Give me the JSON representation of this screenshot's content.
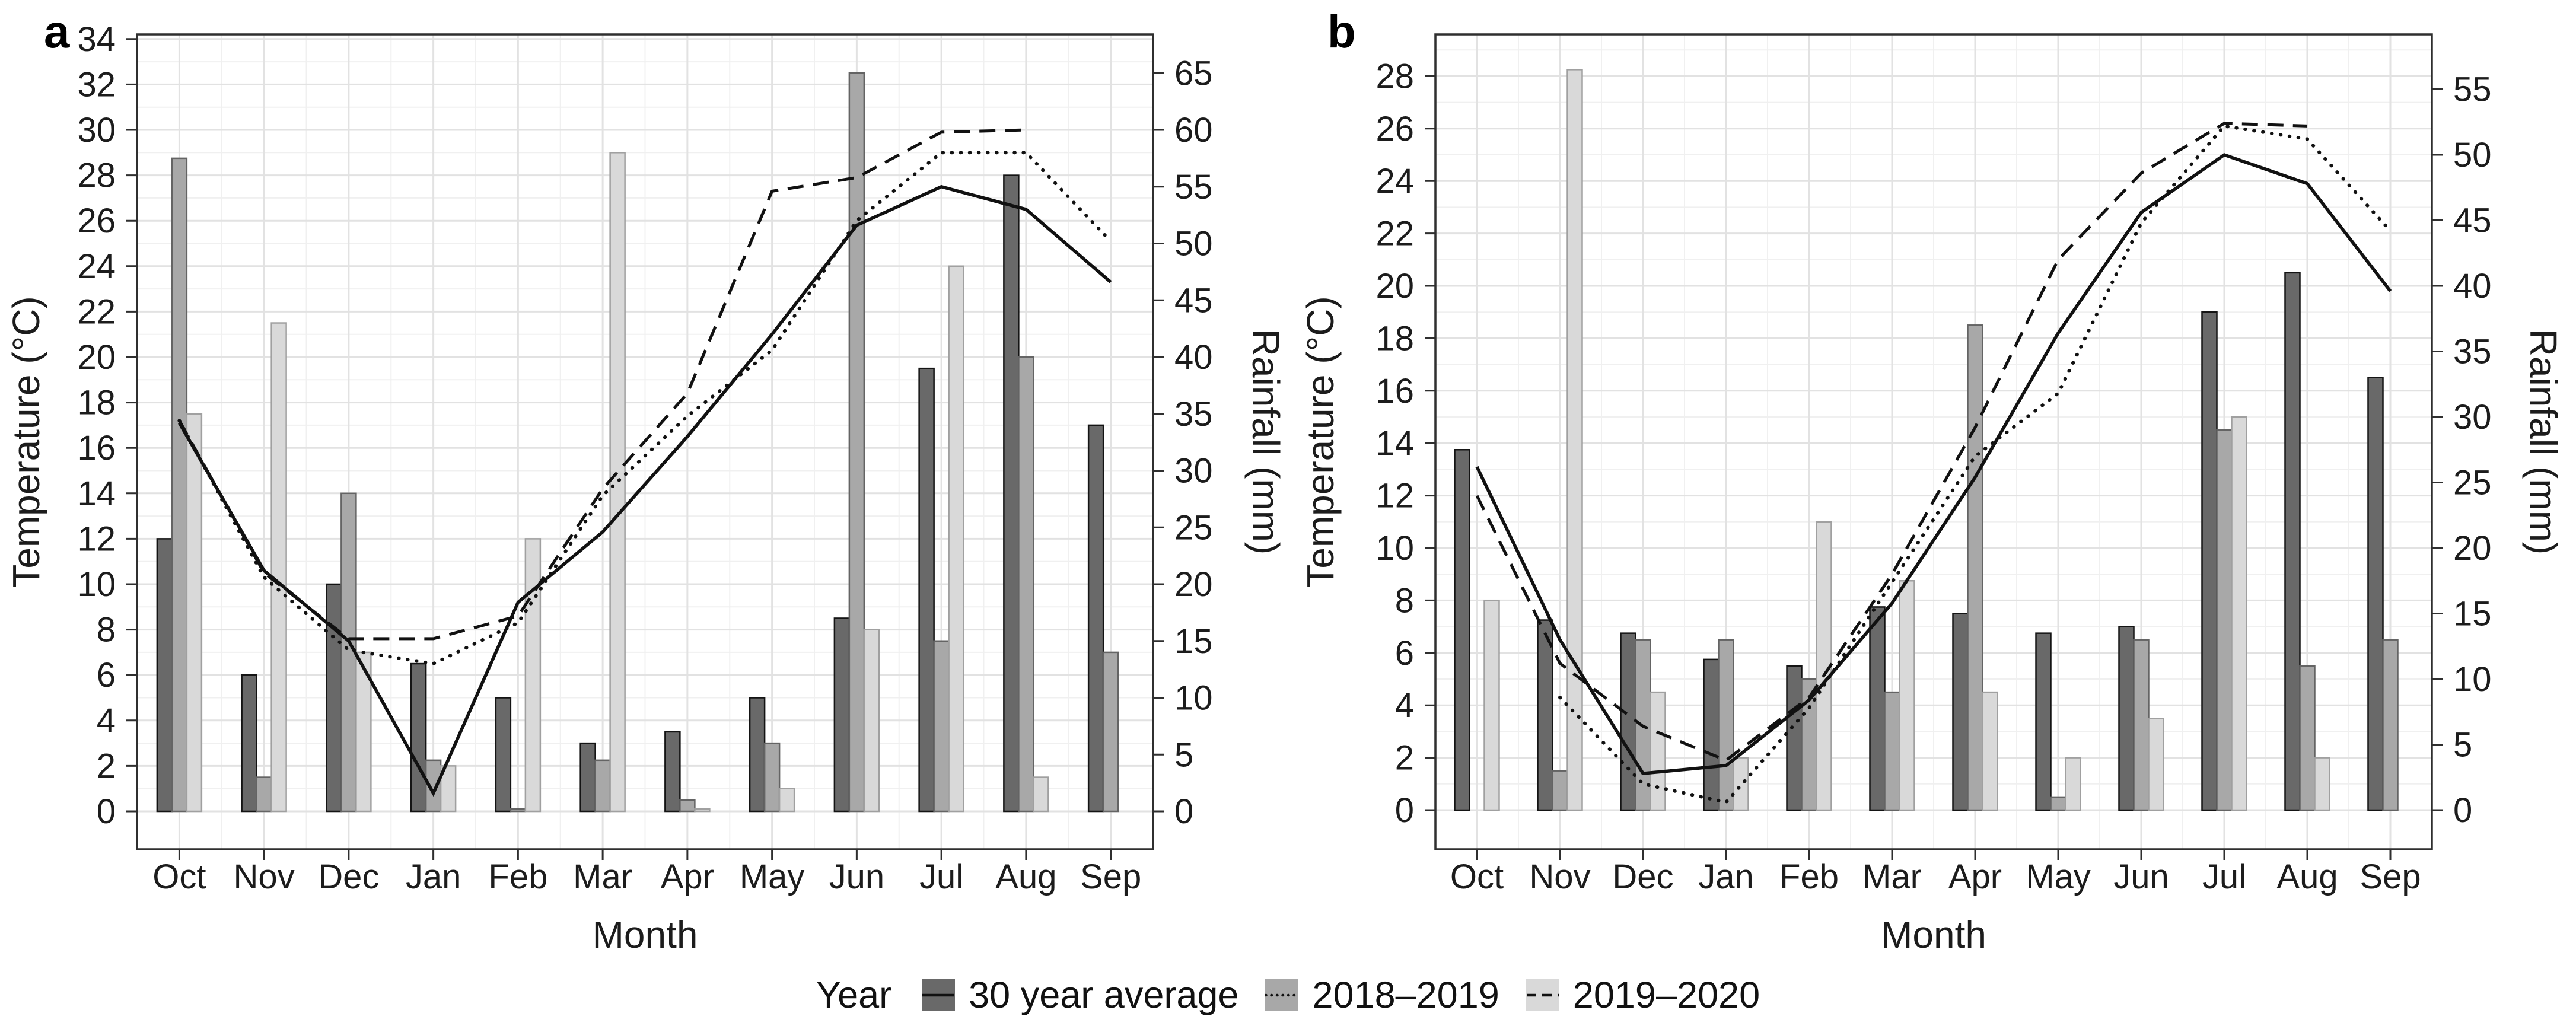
{
  "figure": {
    "legend": {
      "title": "Year",
      "items": [
        {
          "label": "30 year average",
          "fill": "#696969",
          "linetype": "solid"
        },
        {
          "label": "2018–2019",
          "fill": "#a8a8a8",
          "linetype": "dotted"
        },
        {
          "label": "2019–2020",
          "fill": "#d9d9d9",
          "linetype": "dashed"
        }
      ]
    },
    "colors": {
      "bar_dark": "#696969",
      "bar_medium": "#a8a8a8",
      "bar_light": "#d9d9d9",
      "bar_dark_stroke": "#141414",
      "bar_medium_stroke": "#646464",
      "bar_light_stroke": "#a0a0a0",
      "line": "#111111",
      "grid_major": "#e2e2e2",
      "grid_minor": "#f0f0f0",
      "panel_border": "#2f2f2f"
    }
  },
  "chart_data": [
    {
      "type": "bar",
      "panel_label": "a",
      "categories": [
        "Oct",
        "Nov",
        "Dec",
        "Jan",
        "Feb",
        "Mar",
        "Apr",
        "May",
        "Jun",
        "Jul",
        "Aug",
        "Sep"
      ],
      "xlabel": "Month",
      "left_axis": {
        "label": "Temperature (°C)",
        "min": 0,
        "max": 34,
        "tick_step": 2
      },
      "right_axis": {
        "label": "Rainfall (mm)",
        "min": 0,
        "max": 65,
        "tick_step": 5
      },
      "bar_series": [
        {
          "name": "30 year average",
          "axis": "right",
          "unit": "mm",
          "values": [
            24,
            12,
            20,
            13,
            10,
            6,
            7,
            10,
            17,
            39,
            56,
            34
          ]
        },
        {
          "name": "2018–2019",
          "axis": "right",
          "unit": "mm",
          "values": [
            57.5,
            3,
            28,
            4.5,
            0.2,
            4.5,
            1,
            6,
            65,
            15,
            40,
            14
          ]
        },
        {
          "name": "2019–2020",
          "axis": "right",
          "unit": "mm",
          "values": [
            35,
            43,
            14,
            4,
            24,
            58,
            0.2,
            2,
            16,
            48,
            3,
            0
          ]
        }
      ],
      "line_series": [
        {
          "name": "30 year average",
          "style": "solid",
          "axis": "left",
          "unit": "°C",
          "values": [
            17.1,
            10.6,
            7.5,
            0.8,
            9.2,
            12.3,
            16.5,
            21.0,
            25.8,
            27.5,
            26.5,
            23.3
          ]
        },
        {
          "name": "2018–2019",
          "style": "dotted",
          "axis": "left",
          "unit": "°C",
          "values": [
            17.2,
            10.3,
            7.1,
            6.5,
            8.3,
            13.9,
            17.4,
            20.3,
            26.0,
            29.0,
            29.0,
            25.1
          ]
        },
        {
          "name": "2019–2020",
          "style": "dashed",
          "axis": "left",
          "unit": "°C",
          "values": [
            17.2,
            10.5,
            7.6,
            7.6,
            8.6,
            14.2,
            18.4,
            27.3,
            27.9,
            29.9,
            30.0,
            null
          ]
        }
      ],
      "grid": true,
      "legend_position": "bottom"
    },
    {
      "type": "bar",
      "panel_label": "b",
      "categories": [
        "Oct",
        "Nov",
        "Dec",
        "Jan",
        "Feb",
        "Mar",
        "Apr",
        "May",
        "Jun",
        "Jul",
        "Aug",
        "Sep"
      ],
      "xlabel": "Month",
      "left_axis": {
        "label": "Temperature (°C)",
        "min": 0,
        "max": 28,
        "tick_step": 2
      },
      "right_axis": {
        "label": "Rainfall (mm)",
        "min": 0,
        "max": 55,
        "tick_step": 5
      },
      "bar_series": [
        {
          "name": "30 year average",
          "axis": "right",
          "unit": "mm",
          "values": [
            27.5,
            14.5,
            13.5,
            11.5,
            11,
            15.5,
            15,
            13.5,
            14,
            38,
            41,
            33
          ]
        },
        {
          "name": "2018–2019",
          "axis": "right",
          "unit": "mm",
          "values": [
            0,
            3,
            13,
            13,
            10,
            9,
            37,
            1,
            13,
            29,
            11,
            13
          ]
        },
        {
          "name": "2019–2020",
          "axis": "right",
          "unit": "mm",
          "values": [
            16,
            56.5,
            9,
            4,
            22,
            17.5,
            9,
            4,
            7,
            30,
            4,
            0
          ]
        }
      ],
      "line_series": [
        {
          "name": "30 year average",
          "style": "solid",
          "axis": "left",
          "unit": "°C",
          "values": [
            13.1,
            6.5,
            1.4,
            1.7,
            4.2,
            7.9,
            12.7,
            18.2,
            22.8,
            25.0,
            23.9,
            19.8
          ]
        },
        {
          "name": "2018–2019",
          "style": "dotted",
          "axis": "left",
          "unit": "°C",
          "values": [
            null,
            4.3,
            1.0,
            0.3,
            3.9,
            8.7,
            13.5,
            15.9,
            22.4,
            26.1,
            25.6,
            22.1
          ]
        },
        {
          "name": "2019–2020",
          "style": "dashed",
          "axis": "left",
          "unit": "°C",
          "values": [
            12.0,
            5.6,
            3.2,
            1.9,
            4.3,
            9.0,
            14.6,
            21.0,
            24.3,
            26.2,
            26.1,
            null
          ]
        }
      ],
      "grid": true,
      "legend_position": "bottom"
    }
  ]
}
